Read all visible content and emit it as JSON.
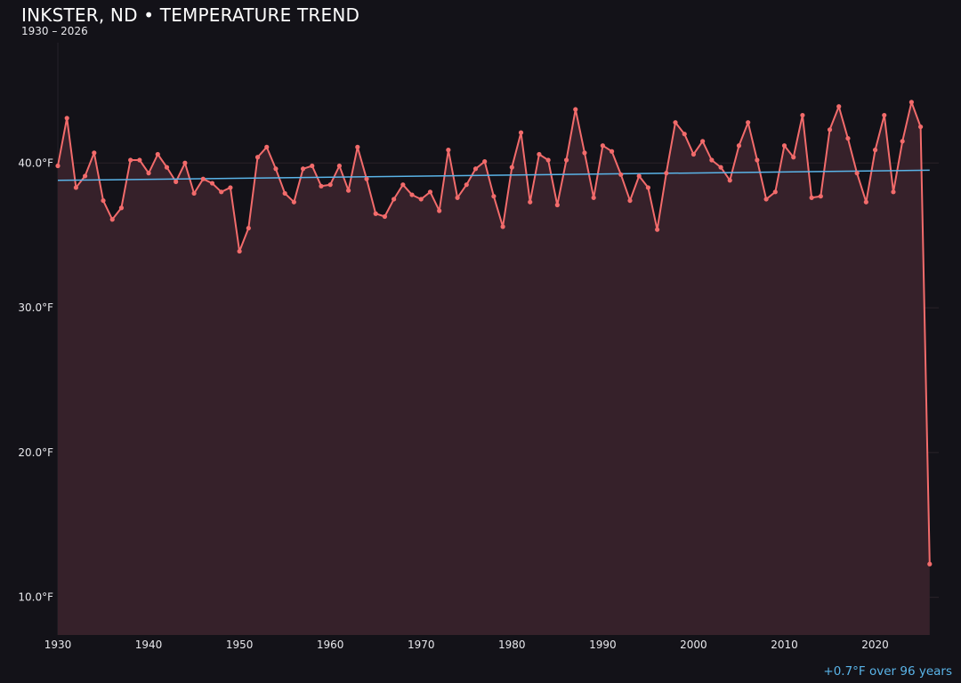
{
  "chart_data": {
    "type": "area",
    "title": "INKSTER, ND • TEMPERATURE TREND",
    "subtitle": "1930 – 2026",
    "xlabel": "",
    "ylabel": "",
    "xlim": [
      1930,
      2027
    ],
    "ylim": [
      7.4,
      48.8
    ],
    "grid": true,
    "x_ticks": [
      1930,
      1940,
      1950,
      1960,
      1970,
      1980,
      1990,
      2000,
      2010,
      2020
    ],
    "y_ticks": [
      10,
      20,
      30,
      40
    ],
    "y_tick_labels": [
      "10.0°F",
      "20.0°F",
      "30.0°F",
      "40.0°F"
    ],
    "x_start": 1930,
    "values": [
      39.8,
      43.1,
      38.3,
      39.1,
      40.7,
      37.4,
      36.1,
      36.9,
      40.2,
      40.2,
      39.3,
      40.6,
      39.7,
      38.7,
      40.0,
      37.9,
      38.9,
      38.6,
      38.0,
      38.3,
      33.9,
      35.5,
      40.4,
      41.1,
      39.6,
      37.9,
      37.3,
      39.6,
      39.8,
      38.4,
      38.5,
      39.8,
      38.1,
      41.1,
      38.9,
      36.5,
      36.3,
      37.5,
      38.5,
      37.8,
      37.5,
      38.0,
      36.7,
      40.9,
      37.6,
      38.5,
      39.6,
      40.1,
      37.7,
      35.6,
      39.7,
      42.1,
      37.3,
      40.6,
      40.2,
      37.1,
      40.2,
      43.7,
      40.7,
      37.6,
      41.2,
      40.8,
      39.2,
      37.4,
      39.1,
      38.3,
      35.4,
      39.3,
      42.8,
      42.0,
      40.6,
      41.5,
      40.2,
      39.7,
      38.8,
      41.2,
      42.8,
      40.2,
      37.5,
      38.0,
      41.2,
      40.4,
      43.3,
      37.6,
      37.7,
      42.3,
      43.9,
      41.7,
      39.3,
      37.3,
      40.9,
      43.3,
      38.0,
      41.5,
      44.2,
      42.5,
      12.3
    ],
    "trend": {
      "x": [
        1930,
        2026
      ],
      "y": [
        38.8,
        39.5
      ]
    },
    "annotation": "+0.7°F over 96 years",
    "colors": {
      "background": "#131218",
      "line": "#f26b6b",
      "fill": "#36212a",
      "trend": "#5ab4e8",
      "grid": "#2a2329"
    }
  }
}
